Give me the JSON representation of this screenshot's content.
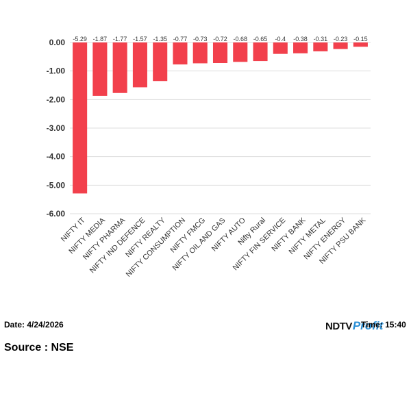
{
  "chart_data": {
    "type": "bar",
    "categories": [
      "NIFTY IT",
      "NIFTY MEDIA",
      "NIFTY PHARMA",
      "NIFTY IND DEFENCE",
      "NIFTY REALTY",
      "NIFTY CONSUMPTION",
      "NIFTY FMCG",
      "NIFTY OIL AND GAS",
      "NIFTY AUTO",
      "Nifty Rural",
      "NIFTY FIN SERVICE",
      "NIFTY BANK",
      "NIFTY METAL",
      "NIFTY ENERGY",
      "NIFTY PSU BANK"
    ],
    "values": [
      -5.29,
      -1.87,
      -1.77,
      -1.57,
      -1.35,
      -0.77,
      -0.73,
      -0.72,
      -0.68,
      -0.65,
      -0.4,
      -0.38,
      -0.31,
      -0.23,
      -0.15
    ],
    "data_labels": [
      "-5.29",
      "-1.87",
      "-1.77",
      "-1.57",
      "-1.35",
      "-0.77",
      "-0.73",
      "-0.72",
      "-0.68",
      "-0.65",
      "-0.4",
      "-0.38",
      "-0.31",
      "-0.23",
      "-0.15"
    ],
    "y_ticks": [
      "0.00",
      "-1.00",
      "-2.00",
      "-3.00",
      "-4.00",
      "-5.00",
      "-6.00"
    ],
    "ylim": [
      -6,
      0
    ],
    "grid": true,
    "bar_color": "#f2404c"
  },
  "footer": {
    "date": "Date: 4/24/2026",
    "time": "Time: 15:40",
    "source": "Source : NSE",
    "logo_ndtv": "NDTV",
    "logo_profit": "Profit"
  }
}
